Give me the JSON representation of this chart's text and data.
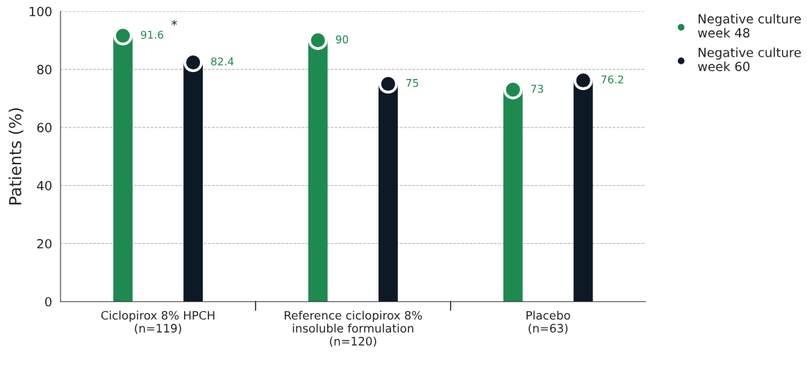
{
  "chart_data": {
    "type": "lollipop",
    "ylabel": "Patients (%)",
    "categories": [
      "Ciclopirox 8% HPCH\n(n=119)",
      "Reference ciclopirox 8%\ninsoluble formulation\n(n=120)",
      "Placebo\n(n=63)"
    ],
    "series": [
      {
        "name": "Negative culture\nweek 48",
        "color": "#1e8a50",
        "values": [
          91.6,
          90,
          73
        ],
        "value_labels": [
          "91.6",
          "90",
          "73"
        ]
      },
      {
        "name": "Negative culture\nweek 60",
        "color": "#0d1a26",
        "values": [
          82.4,
          75,
          76.2
        ],
        "value_labels": [
          "82.4",
          "75",
          "76.2"
        ]
      }
    ],
    "marker": "circle",
    "annotations": [
      "*"
    ],
    "ylim": [
      0,
      100
    ],
    "yticks": [
      0,
      20,
      40,
      60,
      80,
      100
    ],
    "grid": "y",
    "legend": "top right"
  }
}
